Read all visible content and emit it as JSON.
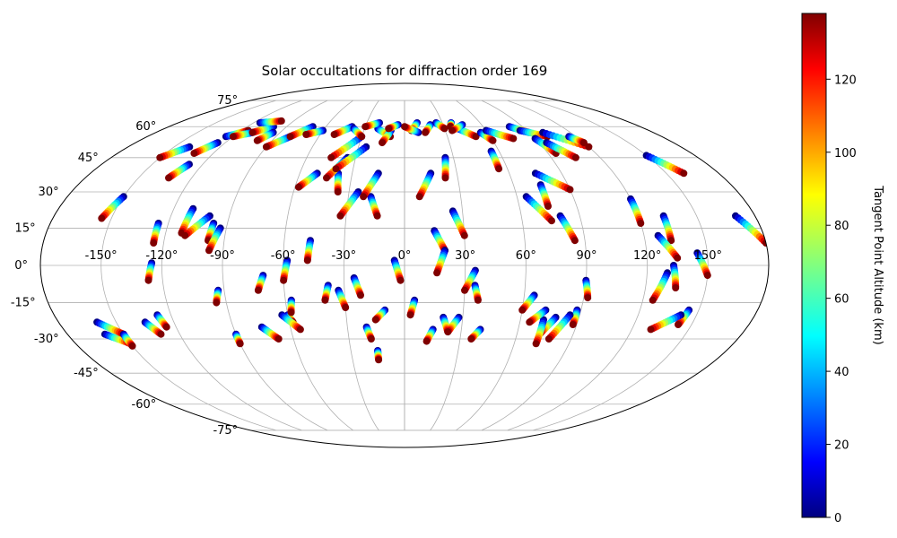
{
  "chart_data": {
    "type": "scatter",
    "projection": "mollweide",
    "title": "Solar occultations for diffraction order 169",
    "lon_ticks": [
      "-150°",
      "-120°",
      "-90°",
      "-60°",
      "-30°",
      "0°",
      "30°",
      "60°",
      "90°",
      "120°",
      "150°"
    ],
    "lon_values": [
      -150,
      -120,
      -90,
      -60,
      -30,
      0,
      30,
      60,
      90,
      120,
      150
    ],
    "lat_ticks": [
      "75°",
      "60°",
      "45°",
      "30°",
      "15°",
      "0°",
      "-15°",
      "-30°",
      "-45°",
      "-60°",
      "-75°"
    ],
    "lat_values": [
      75,
      60,
      45,
      30,
      15,
      0,
      -15,
      -30,
      -45,
      -60,
      -75
    ],
    "grid": true,
    "colorbar": {
      "label": "Tangent Point Altitude (km)",
      "range": [
        0,
        138
      ],
      "ticks": [
        "0",
        "20",
        "40",
        "60",
        "80",
        "100",
        "120"
      ],
      "tick_values": [
        0,
        20,
        40,
        60,
        80,
        100,
        120
      ],
      "colormap": "jet"
    },
    "tracks": [
      [
        -150,
        28,
        -155,
        19
      ],
      [
        -160,
        -28,
        -150,
        -32
      ],
      [
        -160,
        -23,
        -150,
        -28
      ],
      [
        -128,
        42,
        -133,
        36
      ],
      [
        -125,
        52,
        -132,
        47
      ],
      [
        -125,
        55,
        -115,
        58
      ],
      [
        -125,
        1,
        -127,
        -6
      ],
      [
        -125,
        17,
        -125,
        9
      ],
      [
        -127,
        -20,
        -125,
        -25
      ],
      [
        -135,
        -23,
        -130,
        -28
      ],
      [
        -110,
        23,
        -112,
        13
      ],
      [
        -100,
        20,
        -110,
        12
      ],
      [
        -97,
        17,
        -98,
        10
      ],
      [
        -93,
        15,
        -97,
        6
      ],
      [
        -93,
        -10,
        -95,
        -15
      ],
      [
        -90,
        -28,
        -90,
        -32
      ],
      [
        -110,
        57,
        -120,
        55
      ],
      [
        -100,
        60,
        -110,
        57
      ],
      [
        -95,
        57,
        -100,
        53
      ],
      [
        -80,
        55,
        -90,
        50
      ],
      [
        -70,
        60,
        -80,
        55
      ],
      [
        -60,
        58,
        -70,
        56
      ],
      [
        -50,
        38,
        -58,
        32
      ],
      [
        -70,
        -4,
        -73,
        -10
      ],
      [
        -58,
        2,
        -60,
        -6
      ],
      [
        -47,
        10,
        -48,
        2
      ],
      [
        -60,
        -20,
        -58,
        -23
      ],
      [
        -57,
        -14,
        -58,
        -19
      ],
      [
        -63,
        -20,
        -55,
        -26
      ],
      [
        -75,
        -25,
        -68,
        -30
      ],
      [
        -38,
        38,
        -36,
        30
      ],
      [
        -35,
        45,
        -44,
        36
      ],
      [
        -25,
        50,
        -40,
        40
      ],
      [
        -30,
        55,
        -45,
        45
      ],
      [
        -40,
        60,
        -50,
        56
      ],
      [
        -38,
        59,
        -30,
        55
      ],
      [
        -25,
        30,
        -33,
        20
      ],
      [
        -20,
        59,
        -10,
        55
      ],
      [
        -18,
        28,
        -14,
        20
      ],
      [
        -15,
        38,
        -22,
        28
      ],
      [
        -10,
        58,
        -15,
        52
      ],
      [
        -20,
        62,
        -30,
        60
      ],
      [
        -5,
        2,
        -2,
        -6
      ],
      [
        -10,
        -18,
        -15,
        -22
      ],
      [
        -20,
        -25,
        -18,
        -30
      ],
      [
        -15,
        -35,
        -15,
        -39
      ],
      [
        -25,
        -5,
        -22,
        -12
      ],
      [
        -38,
        -8,
        -40,
        -14
      ],
      [
        -33,
        -10,
        -30,
        -17
      ],
      [
        5,
        -14,
        3,
        -20
      ],
      [
        10,
        62,
        5,
        58
      ],
      [
        10,
        57,
        0,
        60
      ],
      [
        15,
        38,
        8,
        28
      ],
      [
        25,
        62,
        30,
        59
      ],
      [
        20,
        61,
        15,
        57
      ],
      [
        25,
        45,
        23,
        36
      ],
      [
        15,
        14,
        20,
        6
      ],
      [
        20,
        6,
        16,
        -3
      ],
      [
        25,
        22,
        30,
        12
      ],
      [
        35,
        -2,
        30,
        -10
      ],
      [
        35,
        -8,
        37,
        -14
      ],
      [
        15,
        -26,
        12,
        -31
      ],
      [
        20,
        -21,
        23,
        -27
      ],
      [
        28,
        -21,
        23,
        -27
      ],
      [
        40,
        -26,
        36,
        -30
      ],
      [
        40,
        59,
        50,
        55
      ],
      [
        37,
        62,
        35,
        60
      ],
      [
        55,
        57,
        60,
        53
      ],
      [
        60,
        58,
        75,
        54
      ],
      [
        55,
        48,
        55,
        40
      ],
      [
        65,
        28,
        75,
        18
      ],
      [
        75,
        38,
        90,
        31
      ],
      [
        75,
        33,
        75,
        24
      ],
      [
        80,
        20,
        85,
        10
      ],
      [
        90,
        -6,
        92,
        -13
      ],
      [
        88,
        -18,
        88,
        -24
      ],
      [
        78,
        -21,
        72,
        -28
      ],
      [
        72,
        -22,
        72,
        -32
      ],
      [
        85,
        -20,
        78,
        -30
      ],
      [
        65,
        -12,
        60,
        -18
      ],
      [
        72,
        -18,
        65,
        -23
      ],
      [
        80,
        60,
        90,
        57
      ],
      [
        85,
        58,
        100,
        55
      ],
      [
        90,
        54,
        95,
        47
      ],
      [
        95,
        52,
        105,
        45
      ],
      [
        100,
        57,
        120,
        50
      ],
      [
        120,
        27,
        120,
        17
      ],
      [
        133,
        20,
        133,
        10
      ],
      [
        127,
        12,
        135,
        3
      ],
      [
        133,
        0,
        135,
        -9
      ],
      [
        130,
        -3,
        125,
        -14
      ],
      [
        145,
        -18,
        143,
        -24
      ],
      [
        142,
        -20,
        130,
        -26
      ],
      [
        145,
        5,
        150,
        -4
      ],
      [
        150,
        46,
        160,
        38
      ],
      [
        170,
        20,
        180,
        9
      ],
      [
        115,
        55,
        120,
        52
      ],
      [
        -140,
        50,
        -150,
        45
      ],
      [
        -115,
        62,
        -100,
        63
      ],
      [
        -5,
        61,
        -12,
        59
      ],
      [
        45,
        61,
        35,
        58
      ],
      [
        -150,
        -28,
        -150,
        -33
      ]
    ]
  }
}
